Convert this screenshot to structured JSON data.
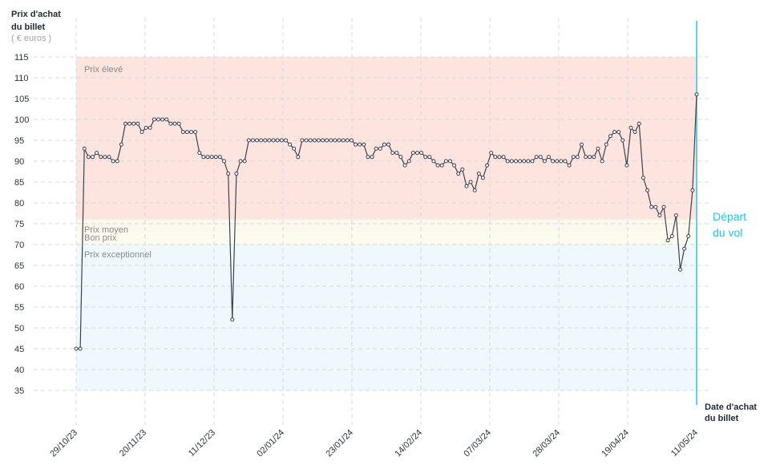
{
  "chart_data": {
    "type": "line",
    "y_axis": {
      "title_line1": "Prix d'achat",
      "title_line2": "du billet",
      "unit": "( € euros )",
      "ticks": [
        35,
        40,
        45,
        50,
        55,
        60,
        65,
        70,
        75,
        80,
        85,
        90,
        95,
        100,
        105,
        110,
        115
      ],
      "range": [
        30,
        120
      ]
    },
    "x_axis": {
      "title_line1": "Date d'achat",
      "title_line2": "du billet",
      "tick_labels": [
        "29/10/23",
        "20/11/23",
        "11/12/23",
        "02/01/24",
        "23/01/24",
        "14/02/24",
        "07/03/24",
        "28/03/24",
        "19/04/24",
        "11/05/24"
      ],
      "start": "29/10/23",
      "end": "11/05/24"
    },
    "bands": [
      {
        "label": "Prix élevé",
        "from": 76,
        "to": 115,
        "color": "#fde4df"
      },
      {
        "label": "Prix moyen",
        "from": 73,
        "to": 76,
        "color": "#fdf8ed"
      },
      {
        "label": "Bon prix",
        "from": 70,
        "to": 73,
        "color": "#fbfbef"
      },
      {
        "label": "Prix exceptionnel",
        "from": 35,
        "to": 70,
        "color": "#eff8fc"
      }
    ],
    "departure": {
      "label_line1": "Départ",
      "label_line2": "du vol",
      "date": "11/05/24",
      "color": "#29c4e0"
    },
    "series": [
      {
        "line_color": "#3a4250",
        "values": [
          45,
          45,
          93,
          91,
          91,
          92,
          91,
          91,
          91,
          90,
          90,
          94,
          99,
          99,
          99,
          99,
          97,
          98,
          98,
          100,
          100,
          100,
          100,
          99,
          99,
          99,
          97,
          97,
          97,
          97,
          92,
          91,
          91,
          91,
          91,
          91,
          90,
          87,
          52,
          87,
          90,
          90,
          95,
          95,
          95,
          95,
          95,
          95,
          95,
          95,
          95,
          95,
          94,
          93,
          91,
          95,
          95,
          95,
          95,
          95,
          95,
          95,
          95,
          95,
          95,
          95,
          95,
          95,
          94,
          94,
          94,
          91,
          91,
          93,
          93,
          94,
          94,
          92,
          92,
          91,
          89,
          90,
          92,
          92,
          92,
          91,
          91,
          90,
          89,
          89,
          90,
          90,
          89,
          87,
          88,
          84,
          85,
          83,
          87,
          86,
          89,
          92,
          91,
          91,
          91,
          90,
          90,
          90,
          90,
          90,
          90,
          90,
          91,
          91,
          90,
          91,
          90,
          90,
          90,
          90,
          89,
          91,
          91,
          94,
          91,
          91,
          91,
          93,
          90,
          94,
          96,
          97,
          97,
          95,
          89,
          98,
          97,
          99,
          86,
          83,
          79,
          79,
          77,
          79,
          71,
          72,
          77,
          64,
          69,
          72,
          83,
          106
        ]
      }
    ]
  }
}
